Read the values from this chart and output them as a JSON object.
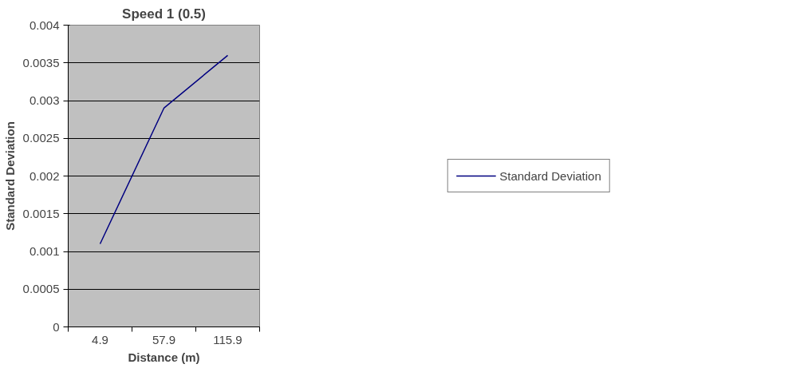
{
  "chart_data": {
    "type": "line",
    "title": "Speed 1 (0.5)",
    "xlabel": "Distance (m)",
    "ylabel": "Standard Deviation",
    "categories": [
      "4.9",
      "57.9",
      "115.9"
    ],
    "series": [
      {
        "name": "Standard Deviation",
        "color": "#000080",
        "values": [
          0.0011,
          0.0029,
          0.0036
        ]
      }
    ],
    "ylim": [
      0,
      0.004
    ],
    "yticks": [
      0,
      0.0005,
      0.001,
      0.0015,
      0.002,
      0.0025,
      0.003,
      0.0035,
      0.004
    ],
    "grid": "y",
    "legend": "right"
  }
}
